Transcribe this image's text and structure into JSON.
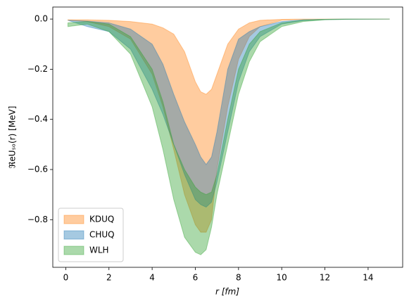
{
  "chart_data": {
    "type": "band",
    "xlabel": "r [fm]",
    "ylabel": "ℜeUₛₒ(r) [MeV]",
    "x": [
      0.1,
      1,
      2,
      3,
      4,
      4.5,
      5,
      5.5,
      6,
      6.25,
      6.5,
      6.75,
      7,
      7.5,
      8,
      8.5,
      9,
      10,
      11,
      12,
      13,
      15
    ],
    "series": [
      {
        "name": "KDUQ",
        "color": "#ff7f0e",
        "upper": [
          -0.003,
          -0.003,
          -0.005,
          -0.01,
          -0.02,
          -0.035,
          -0.06,
          -0.13,
          -0.25,
          -0.29,
          -0.3,
          -0.28,
          -0.22,
          -0.1,
          -0.04,
          -0.015,
          -0.005,
          -0.001,
          0,
          0,
          0,
          0
        ],
        "lower": [
          -0.005,
          -0.01,
          -0.03,
          -0.08,
          -0.22,
          -0.35,
          -0.52,
          -0.7,
          -0.82,
          -0.85,
          -0.85,
          -0.8,
          -0.6,
          -0.35,
          -0.16,
          -0.07,
          -0.03,
          -0.005,
          -0.001,
          0,
          0,
          0
        ]
      },
      {
        "name": "CHUQ",
        "color": "#1f77b4",
        "upper": [
          -0.005,
          -0.008,
          -0.015,
          -0.04,
          -0.1,
          -0.18,
          -0.3,
          -0.41,
          -0.5,
          -0.55,
          -0.58,
          -0.55,
          -0.45,
          -0.2,
          -0.08,
          -0.05,
          -0.03,
          -0.01,
          -0.003,
          -0.001,
          0,
          0
        ],
        "lower": [
          -0.005,
          -0.03,
          -0.05,
          -0.12,
          -0.28,
          -0.38,
          -0.5,
          -0.62,
          -0.72,
          -0.74,
          -0.75,
          -0.73,
          -0.65,
          -0.45,
          -0.25,
          -0.13,
          -0.07,
          -0.02,
          -0.006,
          -0.002,
          -0.001,
          0
        ]
      },
      {
        "name": "WLH",
        "color": "#2ca02c",
        "upper": [
          -0.015,
          -0.01,
          -0.02,
          -0.07,
          -0.2,
          -0.33,
          -0.5,
          -0.6,
          -0.67,
          -0.69,
          -0.7,
          -0.69,
          -0.62,
          -0.4,
          -0.2,
          -0.1,
          -0.05,
          -0.015,
          -0.004,
          -0.001,
          0,
          0
        ],
        "lower": [
          -0.03,
          -0.02,
          -0.05,
          -0.14,
          -0.35,
          -0.52,
          -0.72,
          -0.87,
          -0.93,
          -0.94,
          -0.92,
          -0.83,
          -0.7,
          -0.5,
          -0.3,
          -0.17,
          -0.09,
          -0.03,
          -0.01,
          -0.003,
          -0.001,
          0
        ]
      }
    ],
    "opacity": 0.4,
    "xlim": [
      -0.6,
      15.6
    ],
    "ylim": [
      -0.99,
      0.048
    ],
    "xticks": [
      0,
      2,
      4,
      6,
      8,
      10,
      12,
      14
    ],
    "yticks": [
      {
        "value": 0,
        "label": "0.0"
      },
      {
        "value": -0.2,
        "label": "−0.2"
      },
      {
        "value": -0.4,
        "label": "−0.4"
      },
      {
        "value": -0.6,
        "label": "−0.6"
      },
      {
        "value": -0.8,
        "label": "−0.8"
      }
    ],
    "legend": "lower left"
  }
}
